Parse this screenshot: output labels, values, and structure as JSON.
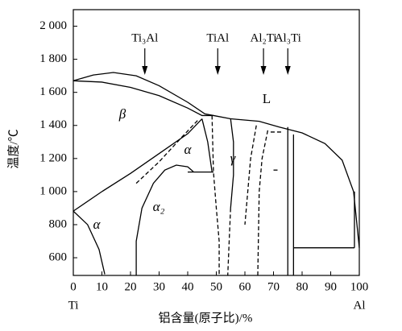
{
  "chart_data": {
    "type": "line",
    "xlabel": "铝含量(原子比)/%",
    "ylabel": "温度/℃",
    "x_end_labels": [
      "Ti",
      "Al"
    ],
    "xlim": [
      0,
      100
    ],
    "ylim": [
      493,
      2100
    ],
    "xticks": [
      0,
      10,
      20,
      30,
      40,
      50,
      60,
      70,
      80,
      90,
      100
    ],
    "yticks": [
      {
        "value": 600,
        "label": "600"
      },
      {
        "value": 800,
        "label": "800"
      },
      {
        "value": 1000,
        "label": "1 000"
      },
      {
        "value": 1200,
        "label": "1 200"
      },
      {
        "value": 1400,
        "label": "1 400"
      },
      {
        "value": 1600,
        "label": "1 600"
      },
      {
        "value": 1800,
        "label": "1 800"
      },
      {
        "value": 2000,
        "label": "2 000"
      }
    ],
    "compounds": [
      {
        "label": "Ti₃Al",
        "x": 25
      },
      {
        "label": "TiAl",
        "x": 50.5
      },
      {
        "label": "Al₂Ti",
        "x": 66.5
      },
      {
        "label": "Al₃Ti",
        "x": 75
      }
    ],
    "phase_labels": [
      "β",
      "α",
      "γ",
      "L",
      "α₂",
      "α"
    ],
    "color": "#000000",
    "series": [
      {
        "x": [
          0,
          7,
          14,
          22,
          30,
          40,
          46,
          49,
          55,
          65,
          72,
          80,
          88,
          94,
          98,
          100
        ],
        "values": [
          1670,
          1705,
          1720,
          1700,
          1640,
          1540,
          1470,
          1460,
          1440,
          1425,
          1390,
          1355,
          1290,
          1190,
          1000,
          660
        ],
        "dashed": false
      },
      {
        "x": [
          0,
          10,
          20,
          30,
          40,
          45,
          49
        ],
        "values": [
          1670,
          1662,
          1630,
          1580,
          1505,
          1460,
          1460
        ],
        "dashed": false
      },
      {
        "x": [
          0,
          10,
          20,
          30,
          40,
          45
        ],
        "values": [
          882,
          1000,
          1110,
          1230,
          1350,
          1440
        ],
        "dashed": false
      },
      {
        "x": [
          0,
          5,
          9,
          11
        ],
        "values": [
          882,
          800,
          650,
          500
        ],
        "dashed": false
      },
      {
        "x": [
          22,
          22,
          24,
          28,
          32,
          36,
          40,
          42
        ],
        "values": [
          493,
          700,
          900,
          1050,
          1130,
          1160,
          1150,
          1120
        ],
        "dashed": false
      },
      {
        "x": [
          22,
          30,
          38,
          44
        ],
        "values": [
          1050,
          1180,
          1330,
          1440
        ],
        "dashed": true
      },
      {
        "x": [
          40,
          49
        ],
        "values": [
          1118,
          1118
        ],
        "dashed": false
      },
      {
        "x": [
          45,
          47,
          48.5
        ],
        "values": [
          1440,
          1300,
          1120
        ],
        "dashed": false
      },
      {
        "x": [
          48.5,
          49,
          50,
          51,
          51
        ],
        "values": [
          1460,
          1120,
          900,
          700,
          493
        ],
        "dashed": true
      },
      {
        "x": [
          55,
          56,
          56,
          55
        ],
        "values": [
          1440,
          1300,
          1100,
          900
        ],
        "dashed": false
      },
      {
        "x": [
          55,
          54.5,
          54
        ],
        "values": [
          900,
          700,
          493
        ],
        "dashed": true
      },
      {
        "x": [
          64,
          62,
          61,
          60
        ],
        "values": [
          1400,
          1200,
          1000,
          800
        ],
        "dashed": true
      },
      {
        "x": [
          68,
          66,
          65,
          64.5
        ],
        "values": [
          1370,
          1200,
          1000,
          493
        ],
        "dashed": true
      },
      {
        "x": [
          69,
          73
        ],
        "values": [
          1360,
          1360
        ],
        "dashed": true
      },
      {
        "x": [
          70,
          72
        ],
        "values": [
          1130,
          1130
        ],
        "dashed": true
      },
      {
        "x": [
          75,
          75
        ],
        "values": [
          1390,
          493
        ],
        "dashed": false
      },
      {
        "x": [
          77,
          77
        ],
        "values": [
          1345,
          493
        ],
        "dashed": false
      },
      {
        "x": [
          77,
          98.3
        ],
        "values": [
          660,
          660
        ],
        "dashed": false
      },
      {
        "x": [
          98.3,
          98.3
        ],
        "values": [
          660,
          1000
        ],
        "dashed": false
      }
    ]
  }
}
